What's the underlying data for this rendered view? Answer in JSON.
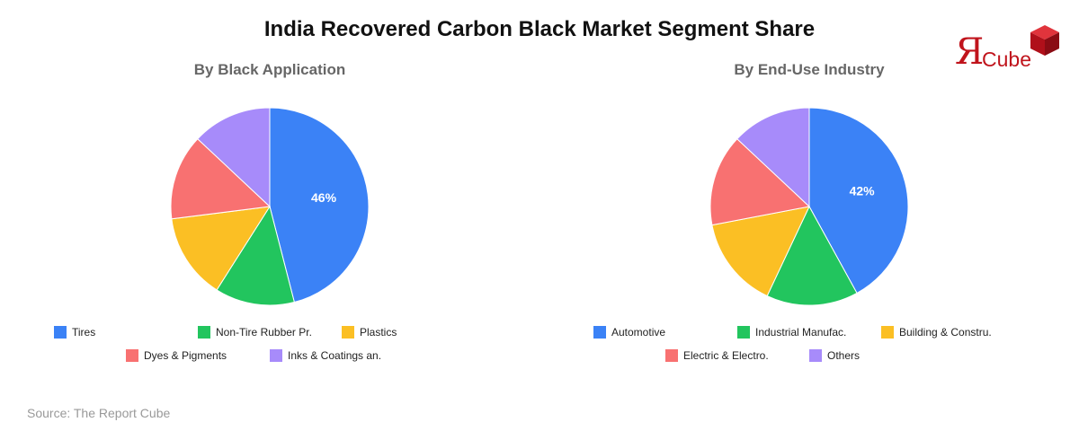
{
  "title": "India Recovered Carbon Black Market Segment Share",
  "source": "Source: The Report Cube",
  "logo": {
    "mark": "Я",
    "word": "Cube"
  },
  "colors": [
    "#3b82f6",
    "#22c55e",
    "#fbbf24",
    "#f87171",
    "#a78bfa"
  ],
  "chart_data": [
    {
      "type": "pie",
      "title": "By Black Application",
      "categories": [
        "Tires",
        "Non-Tire Rubber Pr.",
        "Plastics",
        "Dyes & Pigments",
        "Inks & Coatings an."
      ],
      "values": [
        46,
        13,
        14,
        14,
        13
      ],
      "data_labels": [
        "46%",
        "",
        "",
        "",
        ""
      ],
      "legend_position": "bottom"
    },
    {
      "type": "pie",
      "title": "By End-Use Industry",
      "categories": [
        "Automotive",
        "Industrial Manufac.",
        "Building & Constru.",
        "Electric & Electro.",
        "Others"
      ],
      "values": [
        42,
        15,
        15,
        15,
        13
      ],
      "data_labels": [
        "42%",
        "",
        "",
        "",
        ""
      ],
      "legend_position": "bottom"
    }
  ]
}
